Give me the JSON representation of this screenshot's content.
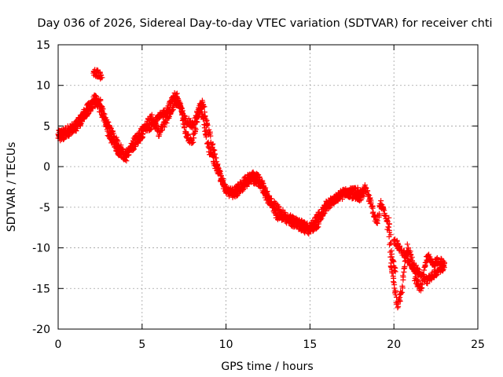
{
  "chart_data": {
    "type": "scatter",
    "title": "Day 036 of 2026, Sidereal Day-to-day VTEC variation (SDTVAR) for receiver chti",
    "xlabel": "GPS time / hours",
    "ylabel": "SDTVAR / TECUs",
    "xlim": [
      0,
      25
    ],
    "ylim": [
      -20,
      15
    ],
    "xticks": [
      0,
      5,
      10,
      15,
      20,
      25
    ],
    "yticks": [
      -20,
      -15,
      -10,
      -5,
      0,
      5,
      10,
      15
    ],
    "grid": true,
    "marker": "+",
    "series": [
      {
        "name": "SDTVAR",
        "color": "#ff0000",
        "x": [
          0,
          0.5,
          1,
          1.5,
          2,
          2.2,
          2.5,
          3,
          3.5,
          4,
          4.5,
          5,
          5.3,
          5.6,
          6,
          6.5,
          7,
          7.3,
          7.6,
          8,
          8.3,
          8.6,
          9,
          9.5,
          10,
          10.5,
          11,
          11.5,
          12,
          12.5,
          13,
          13.5,
          14,
          14.5,
          15,
          15.5,
          16,
          16.5,
          17,
          17.5,
          18,
          18.3,
          19,
          19.2,
          19.5,
          19.7,
          19.8,
          20,
          20.2,
          20.4,
          20.6,
          20.8,
          21,
          21.3,
          21.6,
          22,
          22.3,
          22.6,
          23
        ],
        "y": [
          4,
          4.5,
          5,
          6.5,
          8,
          8.5,
          7,
          5,
          3,
          1.5,
          2.5,
          4,
          5.5,
          6,
          4,
          6,
          8,
          7.5,
          4,
          3,
          6,
          8,
          4,
          0,
          -3,
          -3.5,
          -2.5,
          -1.5,
          -2,
          -4,
          -5,
          -6,
          -6.5,
          -7,
          -7.5,
          -6,
          -5,
          -4,
          -3,
          -3.5,
          -4,
          -2.5,
          -7,
          -4.5,
          -6,
          -8,
          -12,
          -14,
          -17,
          -16,
          -13,
          -10,
          -11,
          -14,
          -15,
          -11,
          -12,
          -11.5,
          -12
        ]
      },
      {
        "name": "SDTVAR",
        "color": "#ff0000",
        "x": [
          0,
          0.5,
          1,
          1.5,
          2,
          2.5,
          3,
          3.5,
          4,
          4.5,
          5,
          5.5,
          6,
          6.5,
          7,
          7.5,
          8,
          8.5,
          9,
          9.5,
          10,
          10.5,
          11,
          11.5,
          12,
          12.5,
          13,
          13.5,
          14,
          14.5,
          15,
          15.5,
          16,
          16.5,
          17,
          17.5,
          18,
          18.2,
          20,
          20.5,
          21,
          21.5,
          22,
          22.5,
          23
        ],
        "y": [
          3.5,
          4,
          4.5,
          6,
          7.5,
          8,
          4,
          2,
          1,
          3,
          4.5,
          5,
          6,
          7,
          9,
          6,
          5,
          7.5,
          2,
          -0.5,
          -3,
          -3,
          -2,
          -1,
          -1.5,
          -3.5,
          -6,
          -6.5,
          -7,
          -7.5,
          -8,
          -7,
          -4.5,
          -4,
          -3.5,
          -3,
          -3,
          -3.5,
          -9,
          -10.5,
          -12,
          -13,
          -14,
          -13,
          -12.5
        ]
      },
      {
        "name": "SDTVAR",
        "color": "#ff0000",
        "x": [
          2.1,
          2.3,
          2.5,
          2.6
        ],
        "y": [
          11.5,
          11.5,
          11.3,
          11
        ]
      },
      {
        "name": "SDTVAR",
        "color": "#ff0000",
        "x": [
          19.7,
          19.8,
          19.9,
          20.1
        ],
        "y": [
          -6.3,
          -9,
          -11.5,
          -13
        ]
      }
    ]
  }
}
